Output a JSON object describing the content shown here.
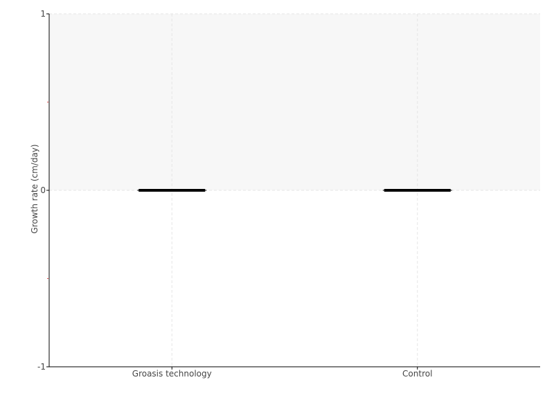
{
  "chart_data": {
    "type": "box",
    "title": "",
    "xlabel": "",
    "ylabel": "Growth rate (cm/day)",
    "categories": [
      "Groasis technology",
      "Control"
    ],
    "series": [
      {
        "values": [
          {
            "min": 0,
            "q1": 0,
            "median": 0,
            "q3": 0,
            "max": 0
          },
          {
            "min": 0,
            "q1": 0,
            "median": 0,
            "q3": 0,
            "max": 0
          }
        ]
      }
    ],
    "ylim": [
      -1,
      1
    ],
    "yticks": [
      "-1",
      "0",
      "1"
    ],
    "y_minor_ticks": [
      -0.5,
      0.5
    ],
    "grid": true,
    "shaded_band": [
      0,
      1
    ],
    "colors": {
      "box": "#000000",
      "band": "#f7f7f7",
      "grid": "#e6e6e6",
      "axis": "#000000",
      "minor_tick": "#e05050"
    }
  }
}
